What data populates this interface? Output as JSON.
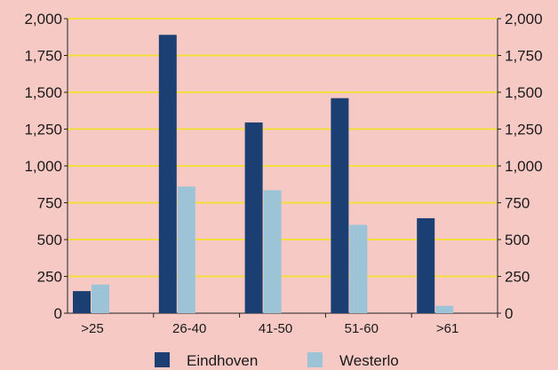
{
  "chart_data": {
    "type": "bar",
    "categories": [
      ">25",
      "26-40",
      "41-50",
      "51-60",
      ">61"
    ],
    "series": [
      {
        "name": "Eindhoven",
        "color": "#1b3f73",
        "values": [
          150,
          1890,
          1295,
          1460,
          645
        ]
      },
      {
        "name": "Westerlo",
        "color": "#9dc3d7",
        "values": [
          195,
          860,
          835,
          600,
          50
        ]
      }
    ],
    "yticks": [
      0,
      250,
      500,
      750,
      1000,
      1250,
      1500,
      1750,
      2000
    ],
    "ytick_labels": [
      "0",
      "250",
      "500",
      "750",
      "1,000",
      "1,250",
      "1,500",
      "1,750",
      "2,000"
    ],
    "ylim": [
      0,
      2000
    ],
    "grid": true,
    "grid_color": "#f2de3c",
    "background": "#f7c9c4",
    "legend_position": "bottom-center",
    "title": "",
    "xlabel": "",
    "ylabel": ""
  }
}
